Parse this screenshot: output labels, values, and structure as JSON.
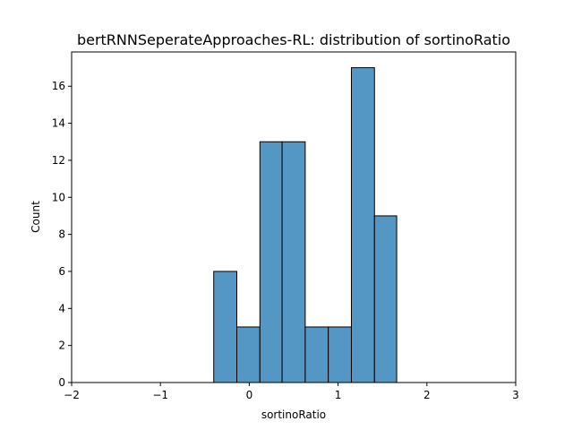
{
  "chart_data": {
    "type": "bar",
    "title": "bertRNNSeperateApproaches-RL: distribution of sortinoRatio",
    "xlabel": "sortinoRatio",
    "ylabel": "Count",
    "xlim": [
      -2,
      3
    ],
    "ylim": [
      0,
      17.85
    ],
    "xticks": [
      -2,
      -1,
      0,
      1,
      2,
      3
    ],
    "xtick_labels": [
      "−2",
      "−1",
      "0",
      "1",
      "2",
      "3"
    ],
    "yticks": [
      0,
      2,
      4,
      6,
      8,
      10,
      12,
      14,
      16
    ],
    "ytick_labels": [
      "0",
      "2",
      "4",
      "6",
      "8",
      "10",
      "12",
      "14",
      "16"
    ],
    "grid": false,
    "bar_color": "#5497c4",
    "bar_edge_color": "#000000",
    "bins": [
      {
        "x0": -0.4,
        "x1": -0.14,
        "count": 6
      },
      {
        "x0": -0.14,
        "x1": 0.12,
        "count": 3
      },
      {
        "x0": 0.12,
        "x1": 0.37,
        "count": 13
      },
      {
        "x0": 0.37,
        "x1": 0.63,
        "count": 13
      },
      {
        "x0": 0.63,
        "x1": 0.89,
        "count": 3
      },
      {
        "x0": 0.89,
        "x1": 1.15,
        "count": 3
      },
      {
        "x0": 1.15,
        "x1": 1.41,
        "count": 17
      },
      {
        "x0": 1.41,
        "x1": 1.66,
        "count": 9
      }
    ]
  }
}
